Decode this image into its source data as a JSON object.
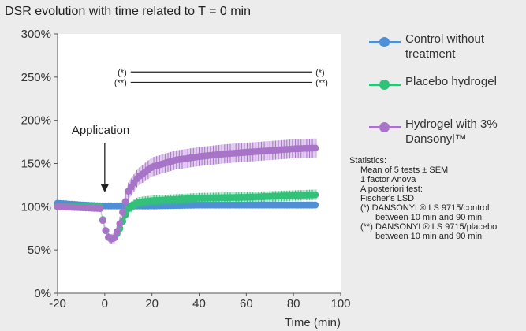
{
  "chart_data": {
    "type": "scatter",
    "title": "DSR evolution with time related to T = 0 min",
    "xlabel": "Time (min)",
    "ylabel": "",
    "xlim": [
      -20,
      100
    ],
    "ylim": [
      0,
      300
    ],
    "xticks": [
      "-20",
      "0",
      "20",
      "40",
      "60",
      "80",
      "100"
    ],
    "yticks": [
      "0%",
      "50%",
      "100%",
      "150%",
      "200%",
      "250%",
      "300%"
    ],
    "grid": false,
    "legend_position": "right",
    "series": [
      {
        "name": "Control without treatment",
        "color": "#4f8fd6",
        "x": [
          -20,
          -10,
          -2,
          2,
          10,
          20,
          40,
          60,
          80,
          90
        ],
        "y": [
          104,
          102,
          101,
          101,
          101,
          101,
          102,
          102,
          102,
          102
        ],
        "err": [
          3,
          1,
          1,
          1,
          1,
          1,
          1,
          1,
          1,
          1
        ]
      },
      {
        "name": "Placebo hydrogel",
        "color": "#33c17a",
        "x": [
          -20,
          -10,
          -2,
          0,
          2,
          4,
          6,
          8,
          10,
          14,
          20,
          40,
          60,
          80,
          90
        ],
        "y": [
          100,
          100,
          100,
          75,
          62,
          64,
          72,
          86,
          98,
          105,
          107,
          110,
          111,
          113,
          114
        ],
        "err": [
          2,
          1,
          1,
          3,
          4,
          4,
          5,
          5,
          6,
          6,
          6,
          6,
          6,
          6,
          6
        ]
      },
      {
        "name": "Hydrogel with 3% Dansonyl™",
        "color": "#a874c8",
        "x": [
          -20,
          -10,
          -2,
          0,
          2,
          4,
          6,
          8,
          10,
          14,
          20,
          30,
          40,
          50,
          60,
          70,
          80,
          90
        ],
        "y": [
          100,
          99,
          98,
          75,
          62,
          64,
          76,
          98,
          118,
          134,
          146,
          154,
          158,
          161,
          163,
          165,
          167,
          168
        ],
        "err": [
          2,
          2,
          2,
          4,
          5,
          6,
          8,
          9,
          10,
          10,
          11,
          11,
          11,
          11,
          11,
          11,
          11,
          11
        ]
      }
    ],
    "annotations": {
      "application": "Application",
      "application_x": 0,
      "sig_control_label": "(*)",
      "sig_placebo_label": "(**)",
      "sig_control_y": 256,
      "sig_placebo_y": 244,
      "sig_x_range": [
        10,
        90
      ]
    }
  },
  "statistics": {
    "heading": "Statistics:",
    "line1": "Mean of 5 tests ± SEM",
    "line2": "1 factor Anova",
    "line3": "A posteriori test:",
    "line4": "Fischer's LSD",
    "line5": "(*)  DANSONYL® LS 9715/control",
    "line6": "between 10 min and 90 min",
    "line7": "(**) DANSONYL® LS 9715/placebo",
    "line8": "between 10 min and 90 min"
  }
}
